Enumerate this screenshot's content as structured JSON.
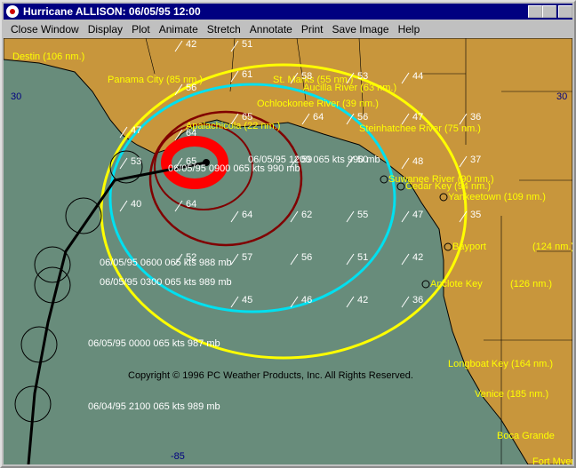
{
  "window": {
    "title": "Hurricane ALLISON: 06/05/95 12:00"
  },
  "menu": [
    "Close Window",
    "Display",
    "Plot",
    "Animate",
    "Stretch",
    "Annotate",
    "Print",
    "Save Image",
    "Help"
  ],
  "places": [
    "Destin (106 nm.)",
    "Panama City (85 nm.)",
    "St. Marks (55 nm.)",
    "Aucilla River (63 nm.)",
    "Ochlockonee River (39 nm.)",
    "Apalachicola (22 nm.)",
    "Steinhatchee River (75 nm.)",
    "Suwanee River (90 nm.)",
    "Cedar Key (94 nm.)",
    "Yankeetown (109 nm.)",
    "Bayport",
    "(124 nm.)",
    "Anclote Key",
    "(126 nm.)",
    "Longboat Key (164 nm.)",
    "Venice (185 nm.)",
    "Boca Grande",
    "Fort Myers"
  ],
  "winds": [
    "42",
    "51",
    "61",
    "56",
    "58",
    "53",
    "44",
    "65",
    "64",
    "56",
    "47",
    "36",
    "47",
    "64",
    "65",
    "59",
    "50",
    "48",
    "37",
    "53",
    "40",
    "64",
    "64",
    "62",
    "55",
    "47",
    "35",
    "52",
    "57",
    "56",
    "51",
    "42",
    "45",
    "46",
    "42",
    "36"
  ],
  "track_labels": [
    "06/05/95 1200 065 kts 990 mb",
    "06/05/95 0900 065 kts 990 mb",
    "06/05/95 0600 065 kts 988 mb",
    "06/05/95 0300 065 kts 989 mb",
    "06/05/95 0000 065 kts 987 mb",
    "06/04/95 2100 065 kts 989 mb"
  ],
  "copyright": "Copyright © 1996 PC Weather Products, Inc. All Rights Reserved.",
  "grid_labels": [
    "30",
    "30",
    "-85"
  ]
}
